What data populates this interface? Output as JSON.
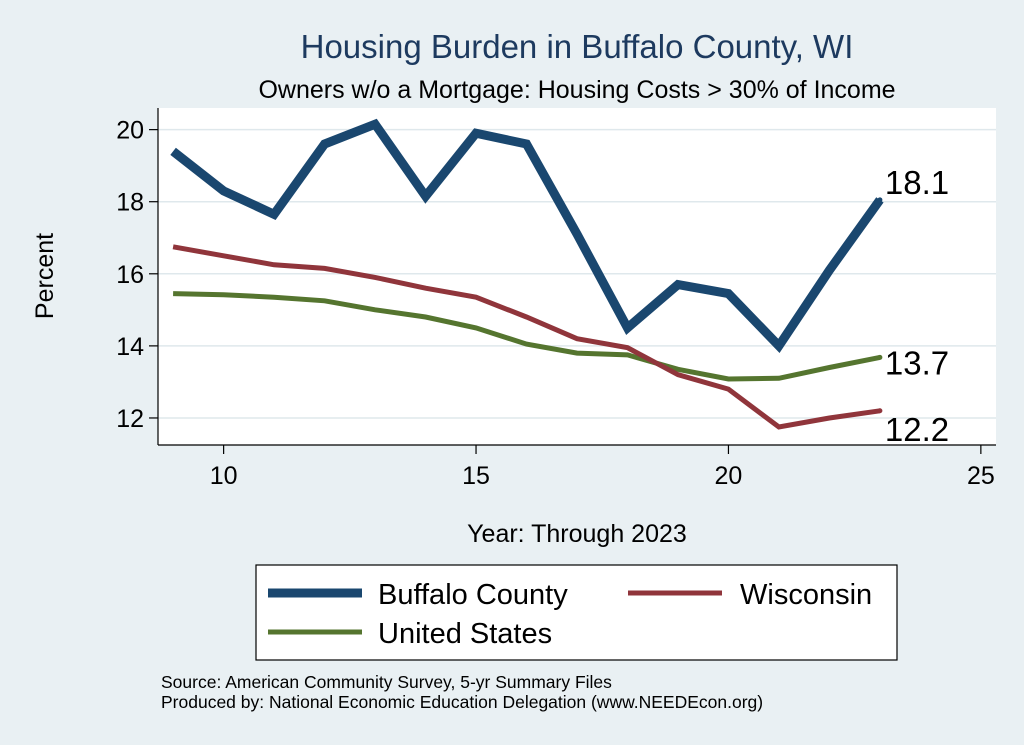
{
  "chart_data": {
    "type": "line",
    "title": "Housing Burden in Buffalo County, WI",
    "subtitle": "Owners w/o a Mortgage: Housing Costs > 30% of Income",
    "xlabel": "Year: Through 2023",
    "ylabel": "Percent",
    "xlim": [
      8.7,
      25.3
    ],
    "ylim": [
      11.25,
      20.6
    ],
    "xticks": [
      10,
      15,
      20,
      25
    ],
    "yticks": [
      12,
      14,
      16,
      18,
      20
    ],
    "grid": true,
    "legend_position": "bottom",
    "series": [
      {
        "name": "Buffalo County",
        "color": "#1a476f",
        "x": [
          9,
          10,
          11,
          12,
          13,
          14,
          15,
          16,
          17,
          18,
          19,
          20,
          21,
          22,
          23
        ],
        "values": [
          19.4,
          18.3,
          17.65,
          19.6,
          20.15,
          18.15,
          19.9,
          19.6,
          17.1,
          14.5,
          15.7,
          15.45,
          14.0,
          16.1,
          18.05
        ],
        "end_label": "18.1"
      },
      {
        "name": "Wisconsin",
        "color": "#90353b",
        "x": [
          9,
          10,
          11,
          12,
          13,
          14,
          15,
          16,
          17,
          18,
          19,
          20,
          21,
          22,
          23
        ],
        "values": [
          16.75,
          16.5,
          16.25,
          16.15,
          15.9,
          15.6,
          15.35,
          14.8,
          14.2,
          13.95,
          13.2,
          12.8,
          11.75,
          12.0,
          12.2
        ],
        "end_label": "12.2"
      },
      {
        "name": "United States",
        "color": "#55752f",
        "x": [
          9,
          10,
          11,
          12,
          13,
          14,
          15,
          16,
          17,
          18,
          19,
          20,
          21,
          22,
          23
        ],
        "values": [
          15.45,
          15.42,
          15.35,
          15.25,
          15.0,
          14.8,
          14.5,
          14.05,
          13.8,
          13.75,
          13.35,
          13.08,
          13.1,
          13.4,
          13.68
        ],
        "end_label": "13.7"
      }
    ]
  },
  "source_note": "Source: American Community Survey, 5-yr Summary Files",
  "produced_note": "Produced by: National Economic Education Delegation (www.NEEDEcon.org)"
}
